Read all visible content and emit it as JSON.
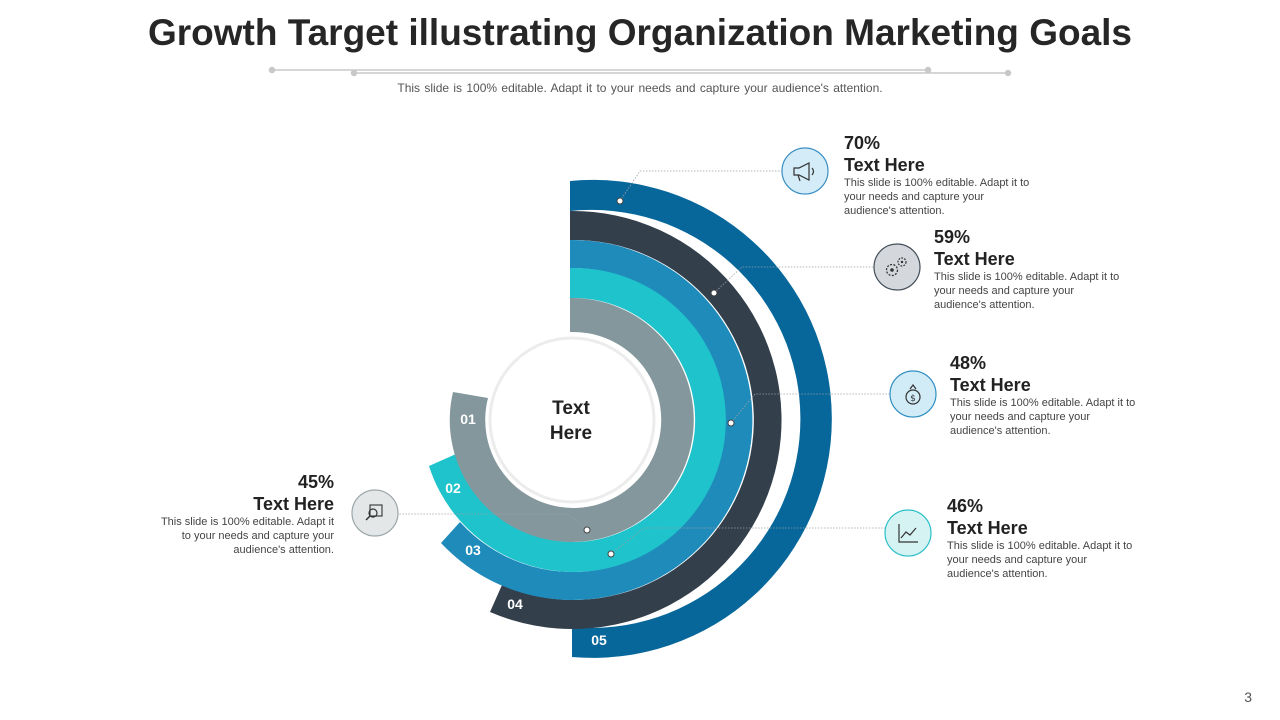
{
  "title": "Growth Target illustrating Organization Marketing Goals",
  "subtitle": "This slide is 100% editable. Adapt it to your needs and capture your audience's attention.",
  "center_label": {
    "line1": "Text",
    "line2": "Here"
  },
  "page_number": "3",
  "segments": [
    {
      "number": "01",
      "color": "#84979c"
    },
    {
      "number": "02",
      "color": "#1ec3cb"
    },
    {
      "number": "03",
      "color": "#1f8bbb"
    },
    {
      "number": "04",
      "color": "#333f4b"
    },
    {
      "number": "05",
      "color": "#07679b"
    }
  ],
  "callouts": [
    {
      "percent": "70%",
      "heading": "Text Here",
      "description": "This slide is 100% editable. Adapt it to your needs and capture your audience's attention.",
      "icon": "megaphone-icon"
    },
    {
      "percent": "59%",
      "heading": "Text Here",
      "description": "This slide is 100% editable. Adapt it to your needs and capture your audience's attention.",
      "icon": "gears-icon"
    },
    {
      "percent": "48%",
      "heading": "Text Here",
      "description": "This slide is 100% editable. Adapt it to your needs and capture your audience's attention.",
      "icon": "money-bag-icon"
    },
    {
      "percent": "46%",
      "heading": "Text Here",
      "description": "This slide is 100% editable. Adapt it to your needs and capture your audience's attention.",
      "icon": "line-chart-icon"
    },
    {
      "percent": "45%",
      "heading": "Text Here",
      "description": "This slide is 100% editable. Adapt it to your needs and capture your audience's attention.",
      "icon": "magnifier-chart-icon"
    }
  ]
}
